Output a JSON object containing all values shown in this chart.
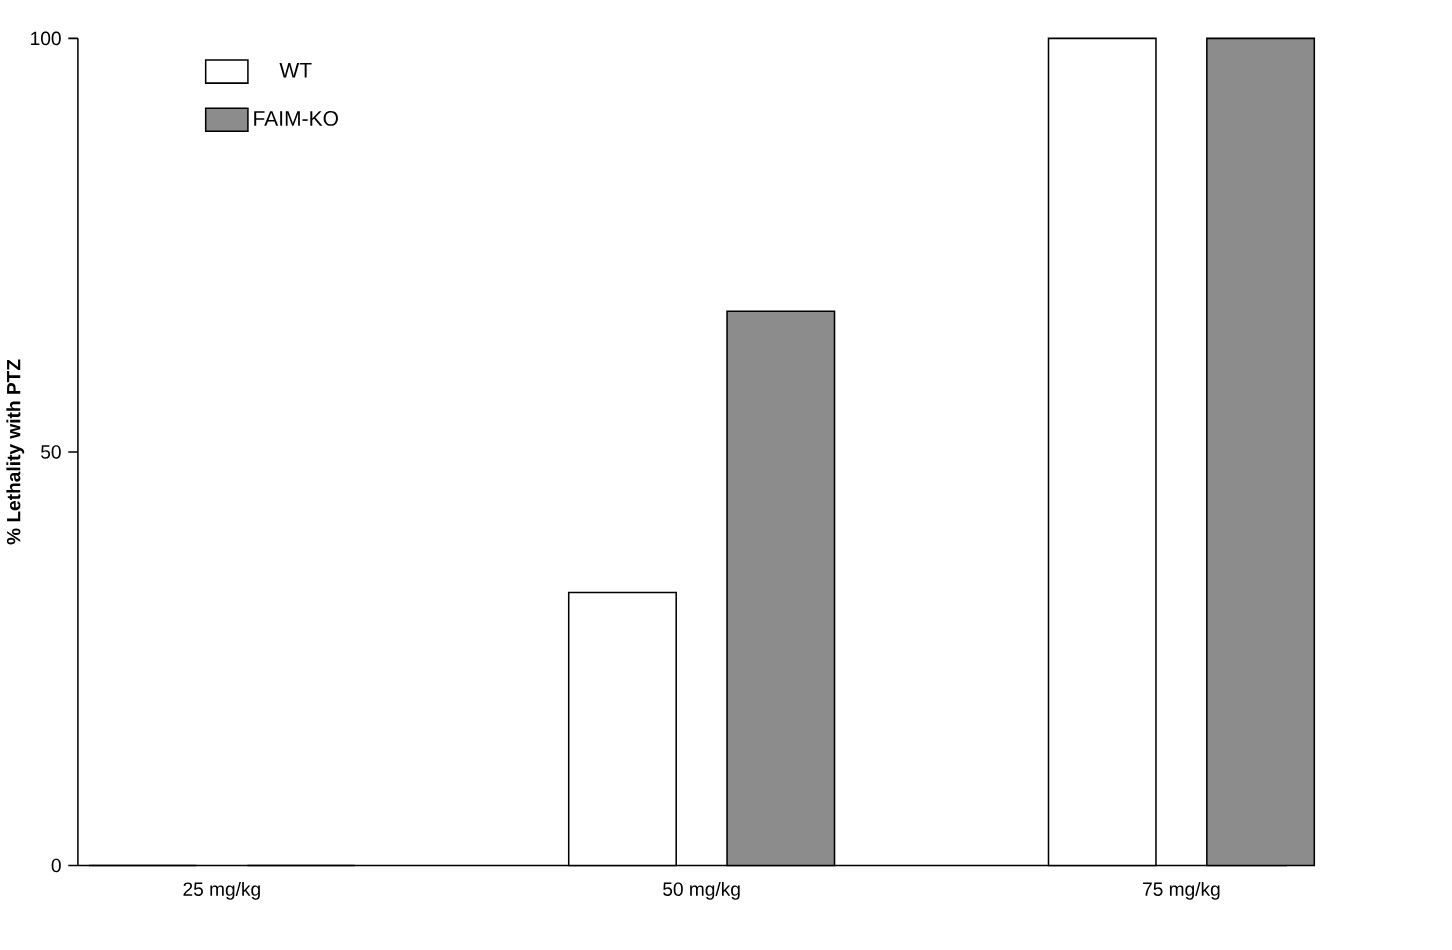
{
  "chart_data": {
    "type": "bar",
    "ylabel": "% Lethality with PTZ",
    "categories": [
      "25 mg/kg",
      "50 mg/kg",
      "75 mg/kg"
    ],
    "series": [
      {
        "name": "WT",
        "color": "#ffffff",
        "values": [
          0,
          33,
          100
        ]
      },
      {
        "name": "FAIM-KO",
        "color": "#8c8c8c",
        "values": [
          0,
          67,
          100
        ]
      }
    ],
    "ylim": [
      0,
      100
    ],
    "yticks": [
      0,
      50,
      100
    ],
    "grid": false,
    "legend": "top left"
  }
}
